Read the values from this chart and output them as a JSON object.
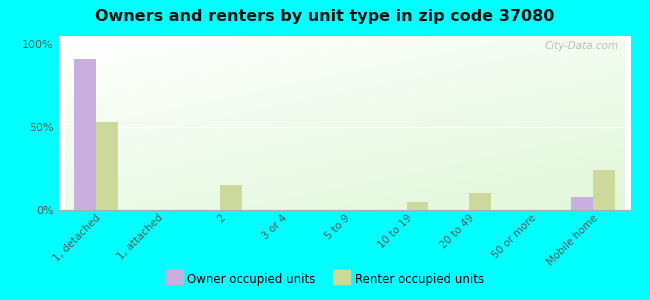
{
  "title": "Owners and renters by unit type in zip code 37080",
  "categories": [
    "1, detached",
    "1, attached",
    "2",
    "3 or 4",
    "5 to 9",
    "10 to 19",
    "20 to 49",
    "50 or more",
    "Mobile home"
  ],
  "owner_values": [
    91,
    0,
    0,
    0,
    0,
    0,
    0,
    0,
    8
  ],
  "renter_values": [
    53,
    0,
    15,
    0,
    0,
    5,
    10,
    0,
    24
  ],
  "owner_color": "#c9aee0",
  "renter_color": "#ccd99a",
  "background_color": "#00ffff",
  "yticks": [
    0,
    50,
    100
  ],
  "ytick_labels": [
    "0%",
    "50%",
    "100%"
  ],
  "ylim": [
    0,
    105
  ],
  "bar_width": 0.35,
  "watermark": "City-Data.com",
  "legend_owner": "Owner occupied units",
  "legend_renter": "Renter occupied units"
}
